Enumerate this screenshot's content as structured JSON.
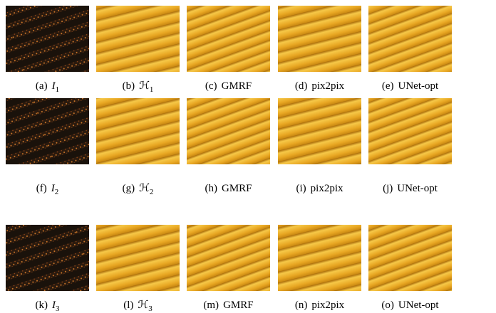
{
  "figure": {
    "rows": [
      [
        {
          "label": "(a)",
          "text": "I",
          "sub": "1"
        },
        {
          "label": "(b)",
          "text": "ℋ",
          "sub": "1"
        },
        {
          "label": "(c)",
          "text": "GMRF"
        },
        {
          "label": "(d)",
          "text": "pix2pix"
        },
        {
          "label": "(e)",
          "text": "UNet-opt"
        }
      ],
      [
        {
          "label": "(f)",
          "text": "I",
          "sub": "2"
        },
        {
          "label": "(g)",
          "text": "ℋ",
          "sub": "2"
        },
        {
          "label": "(h)",
          "text": "GMRF"
        },
        {
          "label": "(i)",
          "text": "pix2pix"
        },
        {
          "label": "(j)",
          "text": "UNet-opt"
        }
      ],
      [
        {
          "label": "(k)",
          "text": "I",
          "sub": "3"
        },
        {
          "label": "(l)",
          "text": "ℋ",
          "sub": "3"
        },
        {
          "label": "(m)",
          "text": "GMRF"
        },
        {
          "label": "(n)",
          "text": "pix2pix"
        },
        {
          "label": "(o)",
          "text": "UNet-opt"
        }
      ]
    ]
  }
}
